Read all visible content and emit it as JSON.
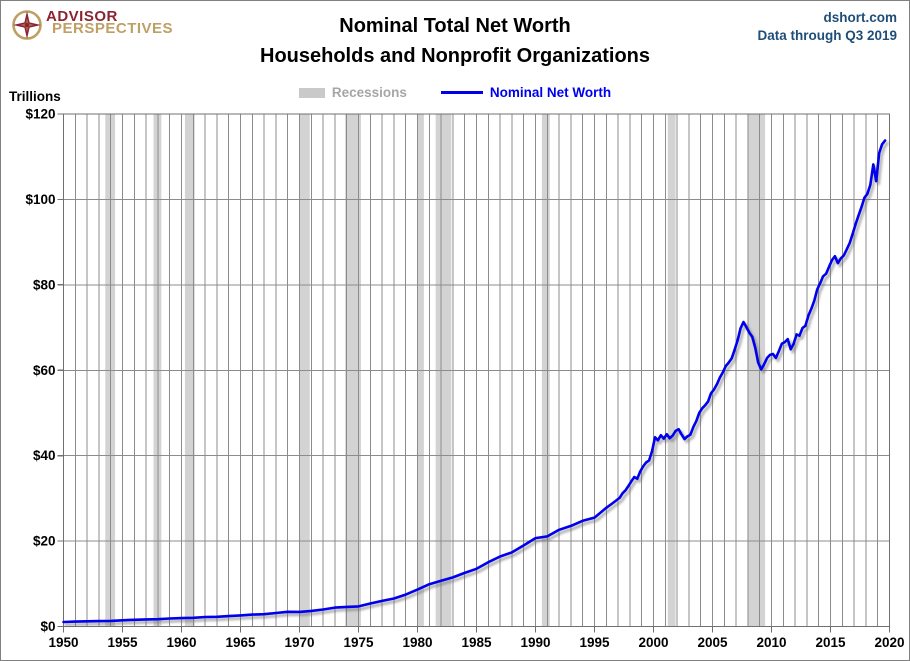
{
  "header": {
    "logo": {
      "icon": "compass-rose-icon",
      "line1": "ADVISOR",
      "line2": "PERSPECTIVES",
      "color_primary": "#8B2332",
      "color_secondary": "#BFA064"
    },
    "title_line1": "Nominal Total Net Worth",
    "title_line2": "Households and Nonprofit Organizations",
    "source": "dshort.com",
    "data_through": "Data through Q3 2019",
    "source_color": "#1F4E79"
  },
  "legend": {
    "position": "top-center",
    "items": [
      {
        "label": "Recessions",
        "type": "band",
        "swatch_color": "#C9C9C9",
        "text_color": "#A6A6A6"
      },
      {
        "label": "Nominal Net Worth",
        "type": "line",
        "swatch_color": "#0000EE",
        "text_color": "#0000EE"
      }
    ]
  },
  "chart_data": {
    "type": "line",
    "title": "Nominal Total Net Worth - Households and Nonprofit Organizations",
    "unit_label": "Trillions",
    "grid": "on",
    "x_axis": {
      "min": 1950,
      "max": 2020,
      "tick_interval": 5,
      "minor_gridline_interval": 1,
      "tick_labels": [
        "1950",
        "1955",
        "1960",
        "1965",
        "1970",
        "1975",
        "1980",
        "1985",
        "1990",
        "1995",
        "2000",
        "2005",
        "2010",
        "2015",
        "2020"
      ]
    },
    "y_axis": {
      "min": 0,
      "max": 120,
      "tick_interval": 20,
      "tick_labels": [
        "$0",
        "$20",
        "$40",
        "$60",
        "$80",
        "$100",
        "$120"
      ]
    },
    "styles": {
      "line_color": "#0000EE",
      "recession_fill": "#D3D3D3",
      "gridline_color": "#8C8C8C",
      "frame_color": "#707070",
      "label_color": "#000000"
    },
    "recessions": [
      [
        1953.54,
        1954.37
      ],
      [
        1957.63,
        1958.29
      ],
      [
        1960.29,
        1961.12
      ],
      [
        1969.96,
        1970.87
      ],
      [
        1973.87,
        1975.21
      ],
      [
        1980.04,
        1980.54
      ],
      [
        1981.54,
        1982.87
      ],
      [
        1990.54,
        1991.21
      ],
      [
        2001.21,
        2001.87
      ],
      [
        2007.96,
        2009.46
      ]
    ],
    "series": [
      {
        "name": "Nominal Net Worth",
        "color": "#0000EE",
        "units": "trillions of dollars",
        "points": [
          [
            1950.0,
            1.05
          ],
          [
            1951.0,
            1.15
          ],
          [
            1952.0,
            1.22
          ],
          [
            1953.0,
            1.27
          ],
          [
            1954.0,
            1.31
          ],
          [
            1955.0,
            1.45
          ],
          [
            1956.0,
            1.56
          ],
          [
            1957.0,
            1.66
          ],
          [
            1958.0,
            1.7
          ],
          [
            1959.0,
            1.88
          ],
          [
            1960.0,
            1.97
          ],
          [
            1961.0,
            2.04
          ],
          [
            1962.0,
            2.22
          ],
          [
            1963.0,
            2.28
          ],
          [
            1964.0,
            2.43
          ],
          [
            1965.0,
            2.59
          ],
          [
            1966.0,
            2.78
          ],
          [
            1967.0,
            2.88
          ],
          [
            1968.0,
            3.15
          ],
          [
            1969.0,
            3.45
          ],
          [
            1970.0,
            3.43
          ],
          [
            1971.0,
            3.65
          ],
          [
            1972.0,
            3.98
          ],
          [
            1973.0,
            4.42
          ],
          [
            1974.0,
            4.6
          ],
          [
            1975.0,
            4.7
          ],
          [
            1976.0,
            5.39
          ],
          [
            1977.0,
            5.99
          ],
          [
            1978.0,
            6.56
          ],
          [
            1979.0,
            7.46
          ],
          [
            1980.0,
            8.65
          ],
          [
            1981.0,
            9.9
          ],
          [
            1982.0,
            10.7
          ],
          [
            1983.0,
            11.5
          ],
          [
            1984.0,
            12.55
          ],
          [
            1985.0,
            13.5
          ],
          [
            1986.0,
            15.05
          ],
          [
            1987.0,
            16.38
          ],
          [
            1988.0,
            17.35
          ],
          [
            1989.0,
            19.0
          ],
          [
            1990.0,
            20.7
          ],
          [
            1991.0,
            21.1
          ],
          [
            1992.0,
            22.65
          ],
          [
            1993.0,
            23.55
          ],
          [
            1994.0,
            24.75
          ],
          [
            1995.0,
            25.5
          ],
          [
            1996.0,
            27.8
          ],
          [
            1996.5,
            28.8
          ],
          [
            1997.125,
            30.1
          ],
          [
            1997.375,
            31.2
          ],
          [
            1997.625,
            31.9
          ],
          [
            1997.875,
            32.9
          ],
          [
            1998.125,
            34.0
          ],
          [
            1998.375,
            35.0
          ],
          [
            1998.625,
            34.6
          ],
          [
            1998.875,
            36.3
          ],
          [
            1999.125,
            37.5
          ],
          [
            1999.375,
            38.4
          ],
          [
            1999.625,
            38.9
          ],
          [
            1999.875,
            41.0
          ],
          [
            2000.125,
            44.3
          ],
          [
            2000.375,
            43.6
          ],
          [
            2000.625,
            44.8
          ],
          [
            2000.875,
            44.0
          ],
          [
            2001.125,
            45.0
          ],
          [
            2001.375,
            44.1
          ],
          [
            2001.625,
            44.7
          ],
          [
            2001.875,
            45.8
          ],
          [
            2002.125,
            46.2
          ],
          [
            2002.375,
            45.0
          ],
          [
            2002.625,
            43.9
          ],
          [
            2002.875,
            44.5
          ],
          [
            2003.125,
            44.9
          ],
          [
            2003.375,
            46.7
          ],
          [
            2003.625,
            48.1
          ],
          [
            2003.875,
            50.0
          ],
          [
            2004.125,
            51.1
          ],
          [
            2004.375,
            51.8
          ],
          [
            2004.625,
            52.7
          ],
          [
            2004.875,
            54.6
          ],
          [
            2005.125,
            55.5
          ],
          [
            2005.375,
            56.7
          ],
          [
            2005.625,
            58.3
          ],
          [
            2005.875,
            59.5
          ],
          [
            2006.125,
            61.0
          ],
          [
            2006.375,
            61.8
          ],
          [
            2006.625,
            62.8
          ],
          [
            2006.875,
            64.8
          ],
          [
            2007.125,
            67.0
          ],
          [
            2007.375,
            69.8
          ],
          [
            2007.625,
            71.3
          ],
          [
            2007.875,
            70.1
          ],
          [
            2008.125,
            68.8
          ],
          [
            2008.375,
            67.8
          ],
          [
            2008.625,
            65.2
          ],
          [
            2008.875,
            61.8
          ],
          [
            2009.125,
            60.2
          ],
          [
            2009.375,
            61.4
          ],
          [
            2009.625,
            62.9
          ],
          [
            2009.875,
            63.6
          ],
          [
            2010.125,
            63.8
          ],
          [
            2010.375,
            62.9
          ],
          [
            2010.625,
            64.5
          ],
          [
            2010.875,
            66.2
          ],
          [
            2011.125,
            66.6
          ],
          [
            2011.375,
            67.3
          ],
          [
            2011.625,
            64.9
          ],
          [
            2011.875,
            66.2
          ],
          [
            2012.125,
            68.4
          ],
          [
            2012.375,
            68.1
          ],
          [
            2012.625,
            69.9
          ],
          [
            2012.875,
            70.4
          ],
          [
            2013.125,
            72.8
          ],
          [
            2013.375,
            74.4
          ],
          [
            2013.625,
            76.3
          ],
          [
            2013.875,
            78.9
          ],
          [
            2014.125,
            80.4
          ],
          [
            2014.375,
            82.0
          ],
          [
            2014.625,
            82.6
          ],
          [
            2014.875,
            84.2
          ],
          [
            2015.125,
            85.8
          ],
          [
            2015.375,
            86.7
          ],
          [
            2015.625,
            85.1
          ],
          [
            2015.875,
            86.2
          ],
          [
            2016.125,
            86.9
          ],
          [
            2016.375,
            88.3
          ],
          [
            2016.625,
            89.8
          ],
          [
            2016.875,
            91.9
          ],
          [
            2017.125,
            94.2
          ],
          [
            2017.375,
            96.2
          ],
          [
            2017.625,
            98.2
          ],
          [
            2017.875,
            100.4
          ],
          [
            2018.125,
            101.3
          ],
          [
            2018.375,
            103.4
          ],
          [
            2018.625,
            108.2
          ],
          [
            2018.875,
            104.3
          ],
          [
            2019.125,
            110.9
          ],
          [
            2019.375,
            112.9
          ],
          [
            2019.625,
            113.8
          ]
        ]
      }
    ]
  }
}
